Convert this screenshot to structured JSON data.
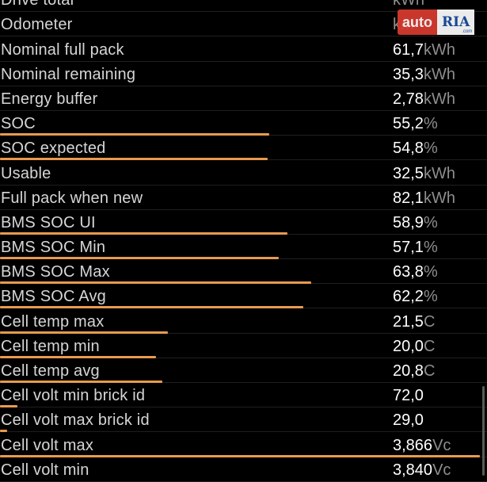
{
  "rows": [
    {
      "label": "Drive total",
      "value": "",
      "unit": "kWh"
    },
    {
      "label": "Odometer",
      "value": "",
      "unit": "km"
    },
    {
      "label": "Nominal full pack",
      "value": "61,7",
      "unit": "kWh"
    },
    {
      "label": "Nominal remaining",
      "value": "35,3",
      "unit": "kWh"
    },
    {
      "label": "Energy buffer",
      "value": "2,78",
      "unit": "kWh"
    },
    {
      "label": "SOC",
      "value": "55,2",
      "unit": "%",
      "bar": 0.553
    },
    {
      "label": "SOC expected",
      "value": "54,8",
      "unit": "%",
      "bar": 0.549
    },
    {
      "label": "Usable",
      "value": "32,5",
      "unit": "kWh"
    },
    {
      "label": "Full pack when new",
      "value": "82,1",
      "unit": "kWh"
    },
    {
      "label": "BMS SOC UI",
      "value": "58,9",
      "unit": "%",
      "bar": 0.59
    },
    {
      "label": "BMS SOC Min",
      "value": "57,1",
      "unit": "%",
      "bar": 0.572
    },
    {
      "label": "BMS SOC Max",
      "value": "63,8",
      "unit": "%",
      "bar": 0.639
    },
    {
      "label": "BMS SOC Avg",
      "value": "62,2",
      "unit": "%",
      "bar": 0.623
    },
    {
      "label": "Cell temp max",
      "value": "21,5",
      "unit": "C",
      "bar": 0.345
    },
    {
      "label": "Cell temp min",
      "value": "20,0",
      "unit": "C",
      "bar": 0.32
    },
    {
      "label": "Cell temp avg",
      "value": "20,8",
      "unit": "C",
      "bar": 0.333
    },
    {
      "label": "Cell volt min brick id",
      "value": "72,0",
      "unit": "",
      "bar": 0.036
    },
    {
      "label": "Cell volt max brick id",
      "value": "29,0",
      "unit": "",
      "bar": 0.014
    },
    {
      "label": "Cell volt max",
      "value": "3,866",
      "unit": "Vc",
      "bar": 0.985
    },
    {
      "label": "Cell volt min",
      "value": "3,840",
      "unit": "Vc"
    }
  ],
  "watermark": {
    "auto": "auto",
    "ria": "RIA",
    "com": ".com"
  },
  "colors": {
    "bar": "#e89a4e",
    "background": "#000000",
    "unit": "#8e8e8e"
  }
}
